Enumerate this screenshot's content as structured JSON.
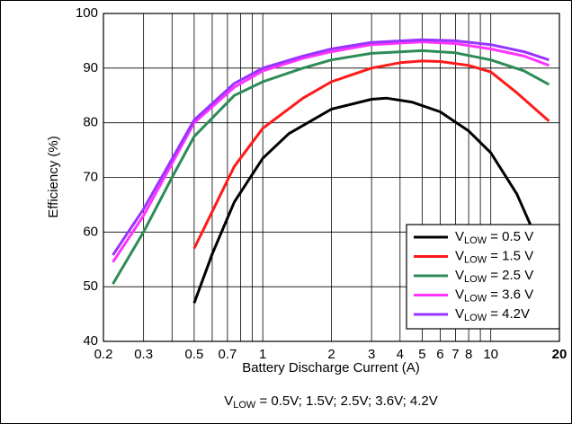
{
  "chart_data": {
    "type": "line",
    "xlabel": "Battery Discharge Current (A)",
    "ylabel": "Efficiency (%)",
    "caption": "VLOW = 0.5V; 1.5V; 2.5V; 3.6V; 4.2V",
    "xscale": "log",
    "xlim": [
      0.2,
      20
    ],
    "ylim": [
      40,
      100
    ],
    "xticks": [
      0.2,
      0.3,
      0.5,
      0.7,
      1,
      2,
      3,
      4,
      5,
      6,
      7,
      8,
      10,
      20
    ],
    "xminor": [
      0.4,
      0.6,
      0.8,
      0.9,
      9
    ],
    "yticks": [
      40,
      50,
      60,
      70,
      80,
      90,
      100
    ],
    "grid": true,
    "legend": "lower right",
    "series": [
      {
        "name": "VLOW = 0.5 V",
        "color": "#000000",
        "x": [
          0.5,
          0.6,
          0.75,
          1,
          1.3,
          2,
          3,
          3.5,
          4.5,
          6,
          8,
          10,
          13,
          17
        ],
        "values": [
          47,
          56,
          65.5,
          73.5,
          78,
          82.5,
          84.3,
          84.5,
          83.8,
          82,
          78.5,
          74.5,
          67,
          56
        ]
      },
      {
        "name": "VLOW = 1.5 V",
        "color": "#ff1a1a",
        "x": [
          0.5,
          0.75,
          1,
          1.5,
          2,
          3,
          4,
          5,
          6,
          8,
          10,
          13,
          18
        ],
        "values": [
          57,
          72,
          79,
          84.5,
          87.5,
          90,
          91,
          91.3,
          91.2,
          90.5,
          89.3,
          85.5,
          80.3
        ]
      },
      {
        "name": "VLOW = 2.5 V",
        "color": "#2e8b57",
        "x": [
          0.22,
          0.3,
          0.4,
          0.5,
          0.75,
          1,
          1.5,
          2,
          3,
          5,
          7,
          10,
          14,
          18
        ],
        "values": [
          50.5,
          60,
          70,
          77.5,
          85,
          87.5,
          90,
          91.5,
          92.7,
          93.2,
          92.8,
          91.5,
          89.5,
          87
        ]
      },
      {
        "name": "VLOW = 3.6 V",
        "color": "#ff33ff",
        "x": [
          0.22,
          0.3,
          0.5,
          0.75,
          1,
          1.5,
          2,
          3,
          5,
          7,
          10,
          14,
          18
        ],
        "values": [
          54.5,
          63,
          80,
          86.5,
          89.5,
          91.8,
          93,
          94.3,
          94.8,
          94.5,
          93.5,
          92.2,
          90.5
        ]
      },
      {
        "name": "VLOW = 4.2V",
        "color": "#9933ff",
        "x": [
          0.22,
          0.3,
          0.5,
          0.75,
          1,
          1.5,
          2,
          3,
          5,
          7,
          10,
          14,
          18
        ],
        "values": [
          55.8,
          64.2,
          80.5,
          87.2,
          90,
          92.2,
          93.5,
          94.7,
          95.2,
          95,
          94.3,
          93,
          91.5
        ]
      }
    ]
  }
}
